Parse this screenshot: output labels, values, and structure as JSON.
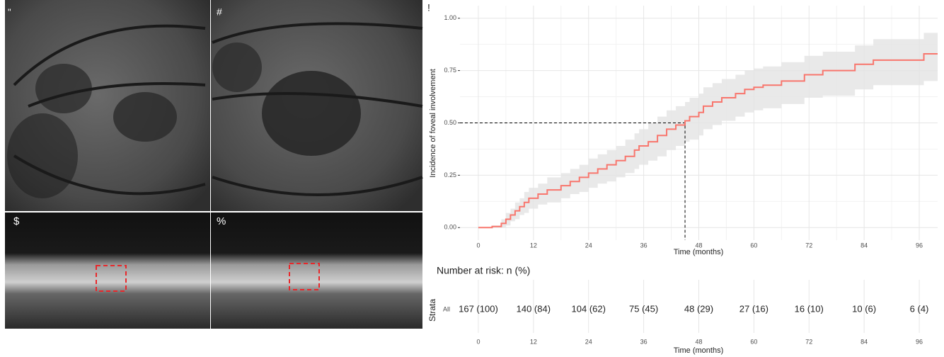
{
  "panel_labels": [
    "\"",
    "#",
    "$",
    "%"
  ],
  "chart_data": {
    "type": "step",
    "panel_label": "!",
    "xlabel": "Time (months)",
    "ylabel": "Incidence of foveal involvement",
    "x": [
      0,
      3,
      5,
      6,
      7,
      8,
      9,
      10,
      11,
      13,
      15,
      18,
      20,
      22,
      24,
      26,
      28,
      30,
      32,
      34,
      35,
      37,
      39,
      41,
      43,
      45,
      46,
      48,
      49,
      51,
      53,
      56,
      58,
      60,
      62,
      66,
      71,
      75,
      82,
      86,
      97,
      100
    ],
    "series": [
      {
        "color": "#f8766d",
        "values": [
          0,
          0.005,
          0.02,
          0.04,
          0.06,
          0.08,
          0.1,
          0.12,
          0.14,
          0.16,
          0.18,
          0.2,
          0.22,
          0.24,
          0.26,
          0.28,
          0.3,
          0.32,
          0.34,
          0.37,
          0.39,
          0.41,
          0.44,
          0.47,
          0.49,
          0.51,
          0.53,
          0.55,
          0.58,
          0.6,
          0.62,
          0.64,
          0.66,
          0.67,
          0.68,
          0.7,
          0.73,
          0.75,
          0.78,
          0.8,
          0.83,
          0.83
        ],
        "lower": [
          0,
          0,
          0,
          0.01,
          0.03,
          0.04,
          0.06,
          0.07,
          0.09,
          0.11,
          0.12,
          0.14,
          0.16,
          0.17,
          0.19,
          0.21,
          0.22,
          0.24,
          0.26,
          0.28,
          0.3,
          0.32,
          0.34,
          0.37,
          0.39,
          0.41,
          0.42,
          0.44,
          0.47,
          0.49,
          0.51,
          0.53,
          0.55,
          0.56,
          0.57,
          0.59,
          0.62,
          0.63,
          0.66,
          0.68,
          0.7,
          0.7
        ],
        "upper": [
          0,
          0.01,
          0.04,
          0.07,
          0.09,
          0.12,
          0.14,
          0.17,
          0.19,
          0.21,
          0.24,
          0.26,
          0.28,
          0.3,
          0.33,
          0.35,
          0.37,
          0.39,
          0.42,
          0.45,
          0.47,
          0.5,
          0.53,
          0.56,
          0.58,
          0.6,
          0.62,
          0.64,
          0.67,
          0.69,
          0.71,
          0.73,
          0.75,
          0.76,
          0.77,
          0.79,
          0.82,
          0.84,
          0.87,
          0.9,
          0.93,
          0.93
        ],
        "band_color": "#e3e3e3"
      }
    ],
    "median": {
      "x": 45,
      "y": 0.5
    },
    "xlim": [
      -4,
      100
    ],
    "ylim": [
      -0.06,
      1.06
    ],
    "xticks": [
      0,
      12,
      24,
      36,
      48,
      60,
      72,
      84,
      96
    ],
    "yticks": [
      {
        "value": 0,
        "label": "0.00"
      },
      {
        "value": 0.25,
        "label": "0.25"
      },
      {
        "value": 0.5,
        "label": "0.50"
      },
      {
        "value": 0.75,
        "label": "0.75"
      },
      {
        "value": 1,
        "label": "1.00"
      }
    ],
    "grid": true,
    "risk_table": {
      "title": "Number at risk: n (%)",
      "ylabel": "Strata",
      "stratum": "All",
      "xlabel": "Time (months)",
      "x": [
        0,
        12,
        24,
        36,
        48,
        60,
        72,
        84,
        96
      ],
      "values": [
        167,
        140,
        104,
        75,
        48,
        27,
        16,
        10,
        6
      ],
      "value_labels": [
        "167 (100)",
        "140 (84)",
        "104 (62)",
        "75 (45)",
        "48 (29)",
        "27 (16)",
        "16 (10)",
        "10 (6)",
        "6 (4)"
      ]
    }
  }
}
